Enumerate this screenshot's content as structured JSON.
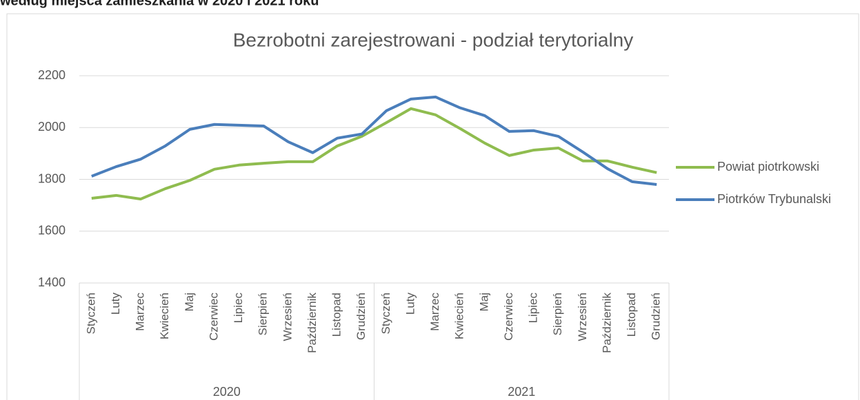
{
  "heading": "według miejsca zamieszkania w 2020 i 2021 roku",
  "chart_data": {
    "type": "line",
    "title": "Bezrobotni zarejestrowani - podział terytorialny",
    "categories": [
      "Styczeń",
      "Luty",
      "Marzec",
      "Kwiecień",
      "Maj",
      "Czerwiec",
      "Lipiec",
      "Sierpień",
      "Wrzesień",
      "Październik",
      "Listopad",
      "Grudzień",
      "Styczeń",
      "Luty",
      "Marzec",
      "Kwiecień",
      "Maj",
      "Czerwiec",
      "Lipiec",
      "Sierpień",
      "Wrzesień",
      "Październik",
      "Listopad",
      "Grudzień"
    ],
    "category_groups": [
      "2020",
      "2021"
    ],
    "series": [
      {
        "name": "Powiat piotrkowski",
        "color": "#8fbc4f",
        "values": [
          1727,
          1738,
          1724,
          1764,
          1796,
          1839,
          1855,
          1862,
          1868,
          1868,
          1929,
          1966,
          2019,
          2073,
          2049,
          1996,
          1940,
          1892,
          1913,
          1921,
          1871,
          1871,
          1847,
          1826
        ]
      },
      {
        "name": "Piotrków Trybunalski",
        "color": "#4a7ebb",
        "values": [
          1812,
          1849,
          1878,
          1929,
          1993,
          2012,
          2009,
          2006,
          1945,
          1903,
          1959,
          1975,
          2065,
          2110,
          2118,
          2076,
          2046,
          1985,
          1988,
          1966,
          1905,
          1841,
          1791,
          1780
        ]
      }
    ],
    "ylim": [
      1400,
      2200
    ],
    "yticks": [
      1400,
      1600,
      1800,
      2000,
      2200
    ],
    "grid": true,
    "legend": "right"
  }
}
